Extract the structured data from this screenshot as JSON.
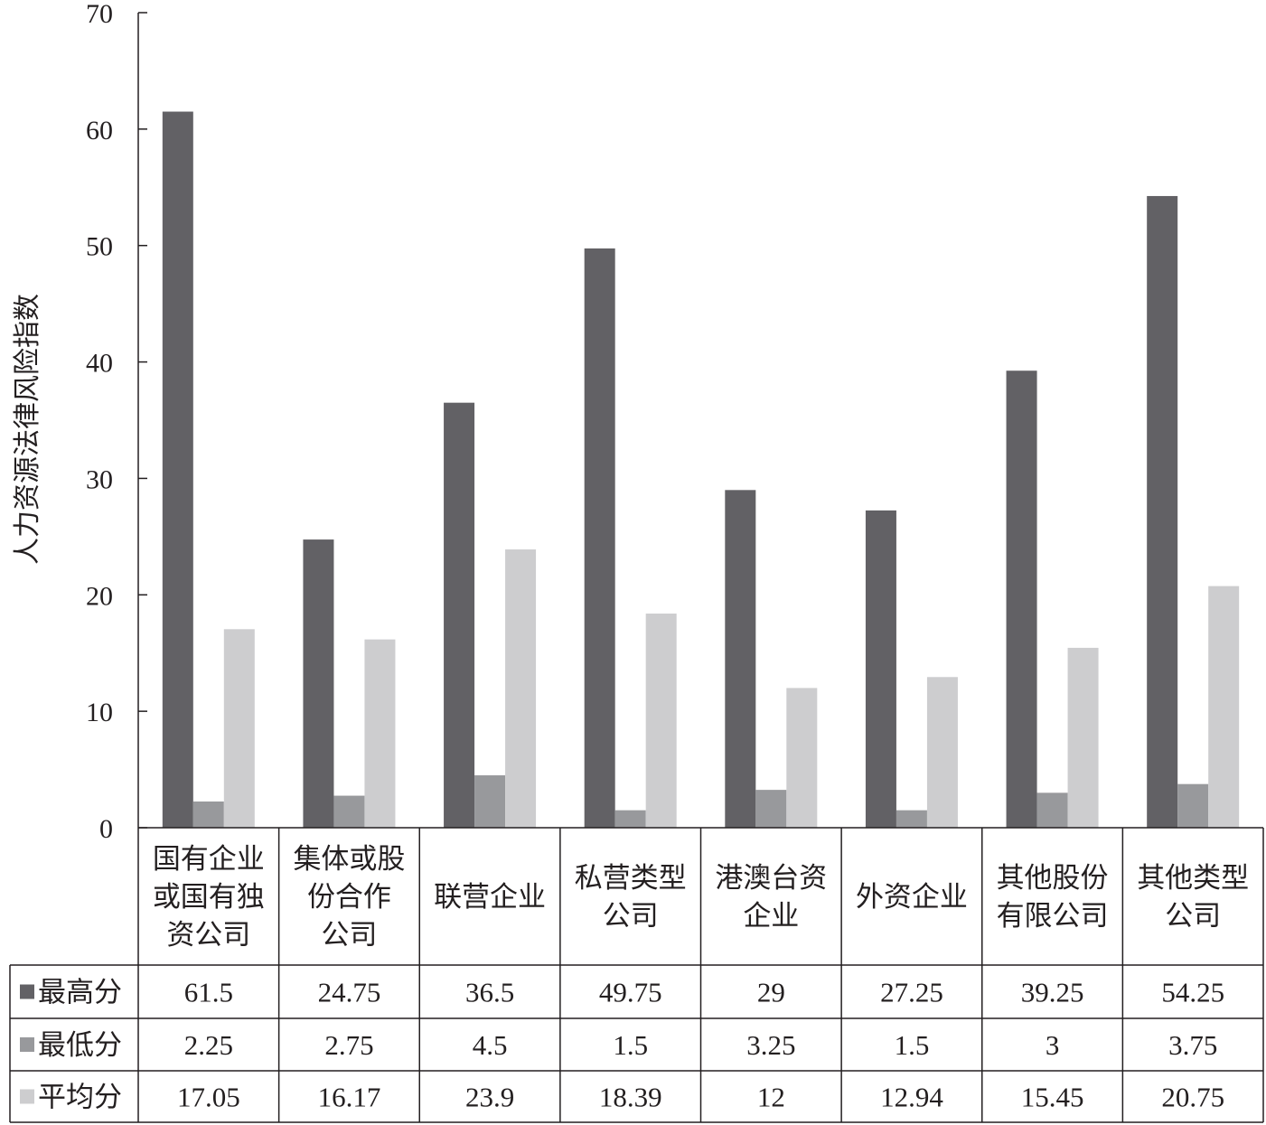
{
  "chart_data": {
    "type": "bar",
    "title": "",
    "xlabel": "",
    "ylabel": "人力资源法律风险指数",
    "ylim": [
      0,
      70
    ],
    "yticks": [
      0,
      10,
      20,
      30,
      40,
      50,
      60,
      70
    ],
    "grid": false,
    "legend": "data-table-left",
    "categories": [
      [
        "国有企业",
        "或国有独",
        "资公司"
      ],
      [
        "集体或股",
        "份合作",
        "公司"
      ],
      [
        "联营企业"
      ],
      [
        "私营类型",
        "公司"
      ],
      [
        "港澳台资",
        "企业"
      ],
      [
        "外资企业"
      ],
      [
        "其他股份",
        "有限公司"
      ],
      [
        "其他类型",
        "公司"
      ]
    ],
    "series": [
      {
        "name": "最高分",
        "color": "#626165",
        "values": [
          61.5,
          24.75,
          36.5,
          49.75,
          29,
          27.25,
          39.25,
          54.25
        ]
      },
      {
        "name": "最低分",
        "color": "#98999c",
        "values": [
          2.25,
          2.75,
          4.5,
          1.5,
          3.25,
          1.5,
          3,
          3.75
        ]
      },
      {
        "name": "平均分",
        "color": "#cdcdcf",
        "values": [
          17.05,
          16.17,
          23.9,
          18.39,
          12,
          12.94,
          15.45,
          20.75
        ]
      }
    ]
  }
}
